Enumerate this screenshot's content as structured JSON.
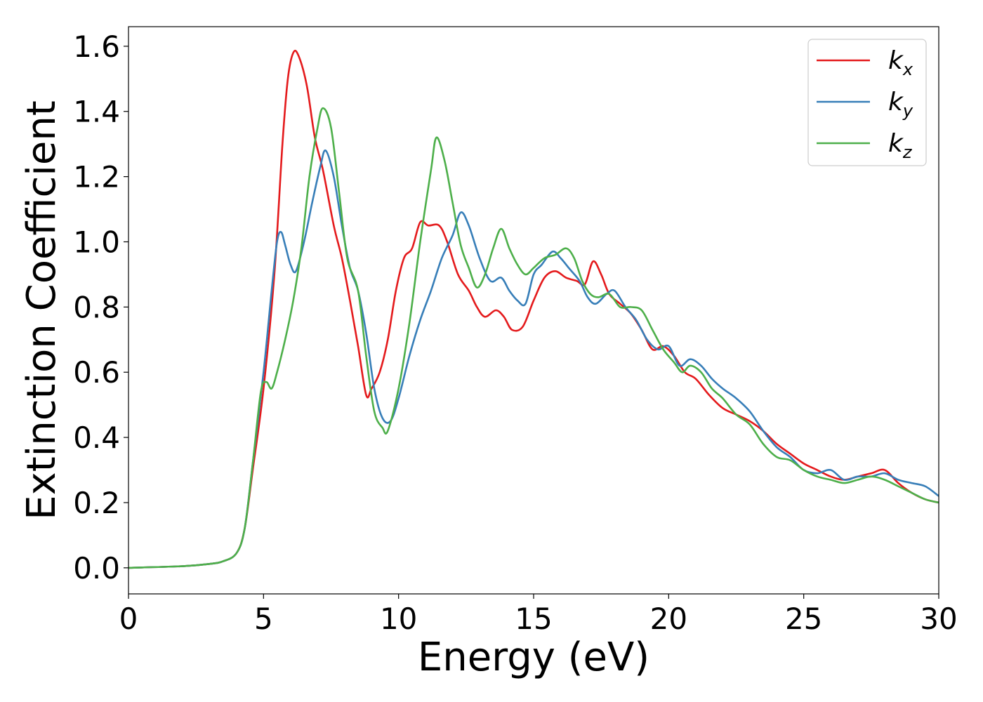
{
  "chart_data": {
    "type": "line",
    "title": "",
    "xlabel": "Energy (eV)",
    "ylabel": "Extinction Coefficient",
    "xlim": [
      0,
      30
    ],
    "ylim": [
      -0.08,
      1.66
    ],
    "xticks": [
      "0",
      "5",
      "10",
      "15",
      "20",
      "25",
      "30"
    ],
    "yticks": [
      "0.0",
      "0.2",
      "0.4",
      "0.6",
      "0.8",
      "1.0",
      "1.2",
      "1.4",
      "1.6"
    ],
    "grid": false,
    "legend_position": "top-right",
    "series": [
      {
        "name": "k",
        "subscript": "x",
        "color": "#e41a1c",
        "points": [
          [
            0,
            0.0
          ],
          [
            2,
            0.005
          ],
          [
            3,
            0.012
          ],
          [
            3.5,
            0.02
          ],
          [
            4,
            0.045
          ],
          [
            4.3,
            0.12
          ],
          [
            4.6,
            0.3
          ],
          [
            5,
            0.55
          ],
          [
            5.4,
            0.9
          ],
          [
            5.7,
            1.3
          ],
          [
            5.9,
            1.5
          ],
          [
            6.1,
            1.58
          ],
          [
            6.3,
            1.57
          ],
          [
            6.6,
            1.48
          ],
          [
            6.9,
            1.32
          ],
          [
            7.2,
            1.22
          ],
          [
            7.6,
            1.05
          ],
          [
            7.9,
            0.95
          ],
          [
            8.2,
            0.82
          ],
          [
            8.5,
            0.68
          ],
          [
            8.8,
            0.53
          ],
          [
            9.0,
            0.55
          ],
          [
            9.3,
            0.6
          ],
          [
            9.6,
            0.7
          ],
          [
            9.9,
            0.85
          ],
          [
            10.2,
            0.95
          ],
          [
            10.5,
            0.98
          ],
          [
            10.8,
            1.06
          ],
          [
            11.1,
            1.05
          ],
          [
            11.5,
            1.05
          ],
          [
            11.8,
            1.0
          ],
          [
            12.2,
            0.9
          ],
          [
            12.6,
            0.85
          ],
          [
            12.9,
            0.8
          ],
          [
            13.2,
            0.77
          ],
          [
            13.6,
            0.79
          ],
          [
            13.9,
            0.77
          ],
          [
            14.2,
            0.73
          ],
          [
            14.6,
            0.74
          ],
          [
            15.0,
            0.82
          ],
          [
            15.4,
            0.89
          ],
          [
            15.8,
            0.91
          ],
          [
            16.2,
            0.89
          ],
          [
            16.6,
            0.88
          ],
          [
            16.9,
            0.87
          ],
          [
            17.2,
            0.94
          ],
          [
            17.5,
            0.9
          ],
          [
            17.8,
            0.84
          ],
          [
            18.2,
            0.81
          ],
          [
            18.6,
            0.78
          ],
          [
            19.0,
            0.73
          ],
          [
            19.4,
            0.67
          ],
          [
            19.8,
            0.68
          ],
          [
            20.2,
            0.65
          ],
          [
            20.6,
            0.6
          ],
          [
            21.0,
            0.58
          ],
          [
            21.5,
            0.53
          ],
          [
            22.0,
            0.49
          ],
          [
            22.5,
            0.47
          ],
          [
            23.0,
            0.45
          ],
          [
            23.5,
            0.42
          ],
          [
            24.0,
            0.38
          ],
          [
            24.5,
            0.35
          ],
          [
            25.0,
            0.32
          ],
          [
            25.5,
            0.3
          ],
          [
            26.0,
            0.28
          ],
          [
            26.5,
            0.27
          ],
          [
            27.0,
            0.28
          ],
          [
            27.5,
            0.29
          ],
          [
            28.0,
            0.3
          ],
          [
            28.5,
            0.26
          ],
          [
            29.0,
            0.23
          ],
          [
            29.5,
            0.21
          ],
          [
            30.0,
            0.2
          ]
        ]
      },
      {
        "name": "k",
        "subscript": "y",
        "color": "#377eb8",
        "points": [
          [
            0,
            0.0
          ],
          [
            2,
            0.005
          ],
          [
            3,
            0.012
          ],
          [
            3.5,
            0.02
          ],
          [
            4,
            0.045
          ],
          [
            4.3,
            0.12
          ],
          [
            4.6,
            0.32
          ],
          [
            5,
            0.6
          ],
          [
            5.3,
            0.85
          ],
          [
            5.5,
            1.0
          ],
          [
            5.65,
            1.03
          ],
          [
            5.8,
            0.99
          ],
          [
            6.0,
            0.93
          ],
          [
            6.2,
            0.91
          ],
          [
            6.5,
            1.0
          ],
          [
            6.8,
            1.12
          ],
          [
            7.1,
            1.23
          ],
          [
            7.3,
            1.28
          ],
          [
            7.6,
            1.2
          ],
          [
            7.9,
            1.05
          ],
          [
            8.2,
            0.92
          ],
          [
            8.5,
            0.85
          ],
          [
            8.8,
            0.72
          ],
          [
            9.1,
            0.55
          ],
          [
            9.4,
            0.46
          ],
          [
            9.7,
            0.45
          ],
          [
            10.0,
            0.52
          ],
          [
            10.4,
            0.65
          ],
          [
            10.8,
            0.76
          ],
          [
            11.2,
            0.85
          ],
          [
            11.6,
            0.95
          ],
          [
            12.0,
            1.02
          ],
          [
            12.3,
            1.09
          ],
          [
            12.6,
            1.05
          ],
          [
            13.0,
            0.95
          ],
          [
            13.4,
            0.88
          ],
          [
            13.8,
            0.89
          ],
          [
            14.1,
            0.85
          ],
          [
            14.4,
            0.82
          ],
          [
            14.7,
            0.81
          ],
          [
            15.0,
            0.9
          ],
          [
            15.3,
            0.93
          ],
          [
            15.7,
            0.97
          ],
          [
            16.0,
            0.95
          ],
          [
            16.3,
            0.92
          ],
          [
            16.7,
            0.88
          ],
          [
            17.0,
            0.83
          ],
          [
            17.3,
            0.81
          ],
          [
            17.7,
            0.84
          ],
          [
            18.0,
            0.85
          ],
          [
            18.4,
            0.8
          ],
          [
            18.8,
            0.76
          ],
          [
            19.2,
            0.7
          ],
          [
            19.6,
            0.67
          ],
          [
            20.0,
            0.68
          ],
          [
            20.4,
            0.62
          ],
          [
            20.8,
            0.64
          ],
          [
            21.2,
            0.62
          ],
          [
            21.6,
            0.58
          ],
          [
            22.0,
            0.55
          ],
          [
            22.5,
            0.52
          ],
          [
            23.0,
            0.48
          ],
          [
            23.5,
            0.42
          ],
          [
            24.0,
            0.37
          ],
          [
            24.5,
            0.34
          ],
          [
            25.0,
            0.3
          ],
          [
            25.5,
            0.29
          ],
          [
            26.0,
            0.3
          ],
          [
            26.5,
            0.27
          ],
          [
            27.0,
            0.28
          ],
          [
            27.5,
            0.28
          ],
          [
            28.0,
            0.29
          ],
          [
            28.5,
            0.27
          ],
          [
            29.0,
            0.26
          ],
          [
            29.5,
            0.25
          ],
          [
            30.0,
            0.22
          ]
        ]
      },
      {
        "name": "k",
        "subscript": "z",
        "color": "#4daf4a",
        "points": [
          [
            0,
            0.0
          ],
          [
            2,
            0.005
          ],
          [
            3,
            0.012
          ],
          [
            3.5,
            0.02
          ],
          [
            4,
            0.045
          ],
          [
            4.3,
            0.12
          ],
          [
            4.6,
            0.32
          ],
          [
            4.9,
            0.54
          ],
          [
            5.1,
            0.57
          ],
          [
            5.3,
            0.55
          ],
          [
            5.5,
            0.6
          ],
          [
            5.8,
            0.7
          ],
          [
            6.1,
            0.82
          ],
          [
            6.4,
            0.98
          ],
          [
            6.7,
            1.2
          ],
          [
            7.0,
            1.35
          ],
          [
            7.2,
            1.41
          ],
          [
            7.5,
            1.35
          ],
          [
            7.8,
            1.15
          ],
          [
            8.1,
            0.95
          ],
          [
            8.5,
            0.85
          ],
          [
            8.8,
            0.65
          ],
          [
            9.1,
            0.48
          ],
          [
            9.4,
            0.43
          ],
          [
            9.6,
            0.42
          ],
          [
            10.0,
            0.55
          ],
          [
            10.4,
            0.75
          ],
          [
            10.8,
            1.0
          ],
          [
            11.2,
            1.22
          ],
          [
            11.4,
            1.32
          ],
          [
            11.7,
            1.25
          ],
          [
            12.0,
            1.12
          ],
          [
            12.3,
            0.99
          ],
          [
            12.6,
            0.92
          ],
          [
            12.9,
            0.86
          ],
          [
            13.2,
            0.9
          ],
          [
            13.5,
            0.98
          ],
          [
            13.8,
            1.04
          ],
          [
            14.1,
            0.98
          ],
          [
            14.4,
            0.93
          ],
          [
            14.7,
            0.9
          ],
          [
            15.0,
            0.92
          ],
          [
            15.4,
            0.95
          ],
          [
            15.8,
            0.96
          ],
          [
            16.2,
            0.98
          ],
          [
            16.5,
            0.95
          ],
          [
            16.8,
            0.88
          ],
          [
            17.1,
            0.84
          ],
          [
            17.4,
            0.83
          ],
          [
            17.8,
            0.84
          ],
          [
            18.2,
            0.8
          ],
          [
            18.6,
            0.8
          ],
          [
            19.0,
            0.79
          ],
          [
            19.4,
            0.73
          ],
          [
            19.8,
            0.67
          ],
          [
            20.2,
            0.63
          ],
          [
            20.5,
            0.6
          ],
          [
            20.8,
            0.62
          ],
          [
            21.2,
            0.6
          ],
          [
            21.6,
            0.55
          ],
          [
            22.0,
            0.52
          ],
          [
            22.5,
            0.47
          ],
          [
            23.0,
            0.44
          ],
          [
            23.5,
            0.38
          ],
          [
            24.0,
            0.34
          ],
          [
            24.5,
            0.33
          ],
          [
            25.0,
            0.3
          ],
          [
            25.5,
            0.28
          ],
          [
            26.0,
            0.27
          ],
          [
            26.5,
            0.26
          ],
          [
            27.0,
            0.27
          ],
          [
            27.5,
            0.28
          ],
          [
            28.0,
            0.27
          ],
          [
            28.5,
            0.25
          ],
          [
            29.0,
            0.23
          ],
          [
            29.5,
            0.21
          ],
          [
            30.0,
            0.2
          ]
        ]
      }
    ]
  }
}
